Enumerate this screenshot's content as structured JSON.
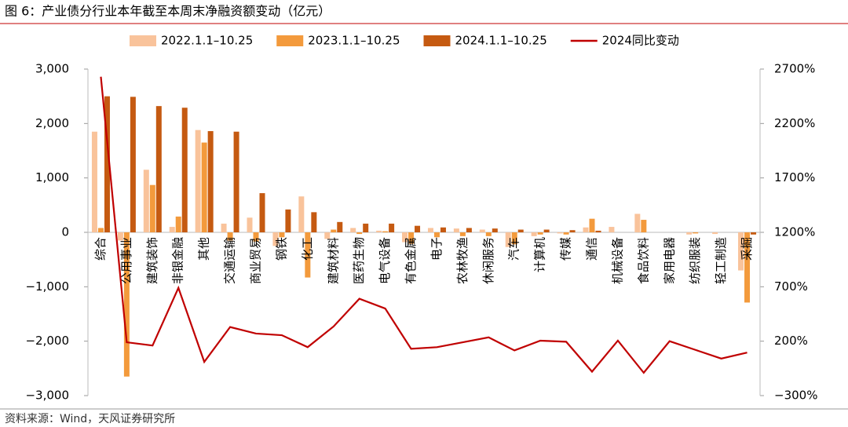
{
  "chart_data": {
    "type": "bar",
    "title": "图 6：产业债分行业本年截至本周末净融资额变动（亿元）",
    "source": "资料来源：Wind，天风证券研究所",
    "categories": [
      "综合",
      "公用事业",
      "建筑装饰",
      "非银金融",
      "其他",
      "交通运输",
      "商业贸易",
      "钢铁",
      "化工",
      "建筑材料",
      "医药生物",
      "电气设备",
      "有色金属",
      "电子",
      "农林牧渔",
      "休闲服务",
      "汽车",
      "计算机",
      "传媒",
      "通信",
      "机械设备",
      "食品饮料",
      "家用电器",
      "纺织服装",
      "轻工制造",
      "采掘"
    ],
    "series": [
      {
        "name": "2022.1.1–10.25",
        "color": "#f9c39b",
        "values": [
          1850,
          -150,
          1150,
          100,
          1880,
          160,
          270,
          -250,
          660,
          -120,
          80,
          30,
          -180,
          80,
          70,
          50,
          -270,
          -70,
          -20,
          90,
          100,
          340,
          0,
          -40,
          -30,
          -700
        ]
      },
      {
        "name": "2023.1.1–10.25",
        "color": "#f39a3c",
        "values": [
          80,
          -2650,
          870,
          290,
          1650,
          -150,
          -170,
          -90,
          -830,
          50,
          -30,
          20,
          -210,
          -90,
          -70,
          -70,
          -220,
          -40,
          -40,
          250,
          0,
          230,
          0,
          -20,
          0,
          -1290
        ]
      },
      {
        "name": "2024.1.1–10.25",
        "color": "#c55a11",
        "values": [
          2500,
          2490,
          2320,
          2290,
          1860,
          1850,
          720,
          420,
          370,
          190,
          160,
          160,
          120,
          90,
          80,
          70,
          50,
          50,
          40,
          30,
          0,
          0,
          0,
          0,
          0,
          -40
        ]
      },
      {
        "name": "2024同比变动",
        "color": "#c00000",
        "type": "line",
        "axis": "y2",
        "values": [
          2630,
          190,
          160,
          690,
          10,
          330,
          270,
          255,
          145,
          335,
          590,
          500,
          130,
          145,
          190,
          235,
          115,
          205,
          195,
          -80,
          205,
          -90,
          200,
          120,
          40,
          95
        ]
      }
    ],
    "ylim": [
      -3000,
      3000
    ],
    "yticks": [
      {
        "value": 3000,
        "label": "3,000"
      },
      {
        "value": 2000,
        "label": "2,000"
      },
      {
        "value": 1000,
        "label": "1,000"
      },
      0,
      {
        "value": -1000,
        "label": "−1,000"
      },
      {
        "value": -2000,
        "label": "−2,000"
      },
      {
        "value": -3000,
        "label": "−3,000"
      }
    ],
    "y2lim": [
      -300,
      2700
    ],
    "y2ticks": [
      {
        "value": 2700,
        "label": "2700%"
      },
      {
        "value": 2200,
        "label": "2200%"
      },
      {
        "value": 1700,
        "label": "1700%"
      },
      {
        "value": 1200,
        "label": "1200%"
      },
      {
        "value": 700,
        "label": "700%"
      },
      {
        "value": 200,
        "label": "200%"
      },
      {
        "value": -300,
        "label": "−300%"
      }
    ],
    "legend": "top"
  }
}
